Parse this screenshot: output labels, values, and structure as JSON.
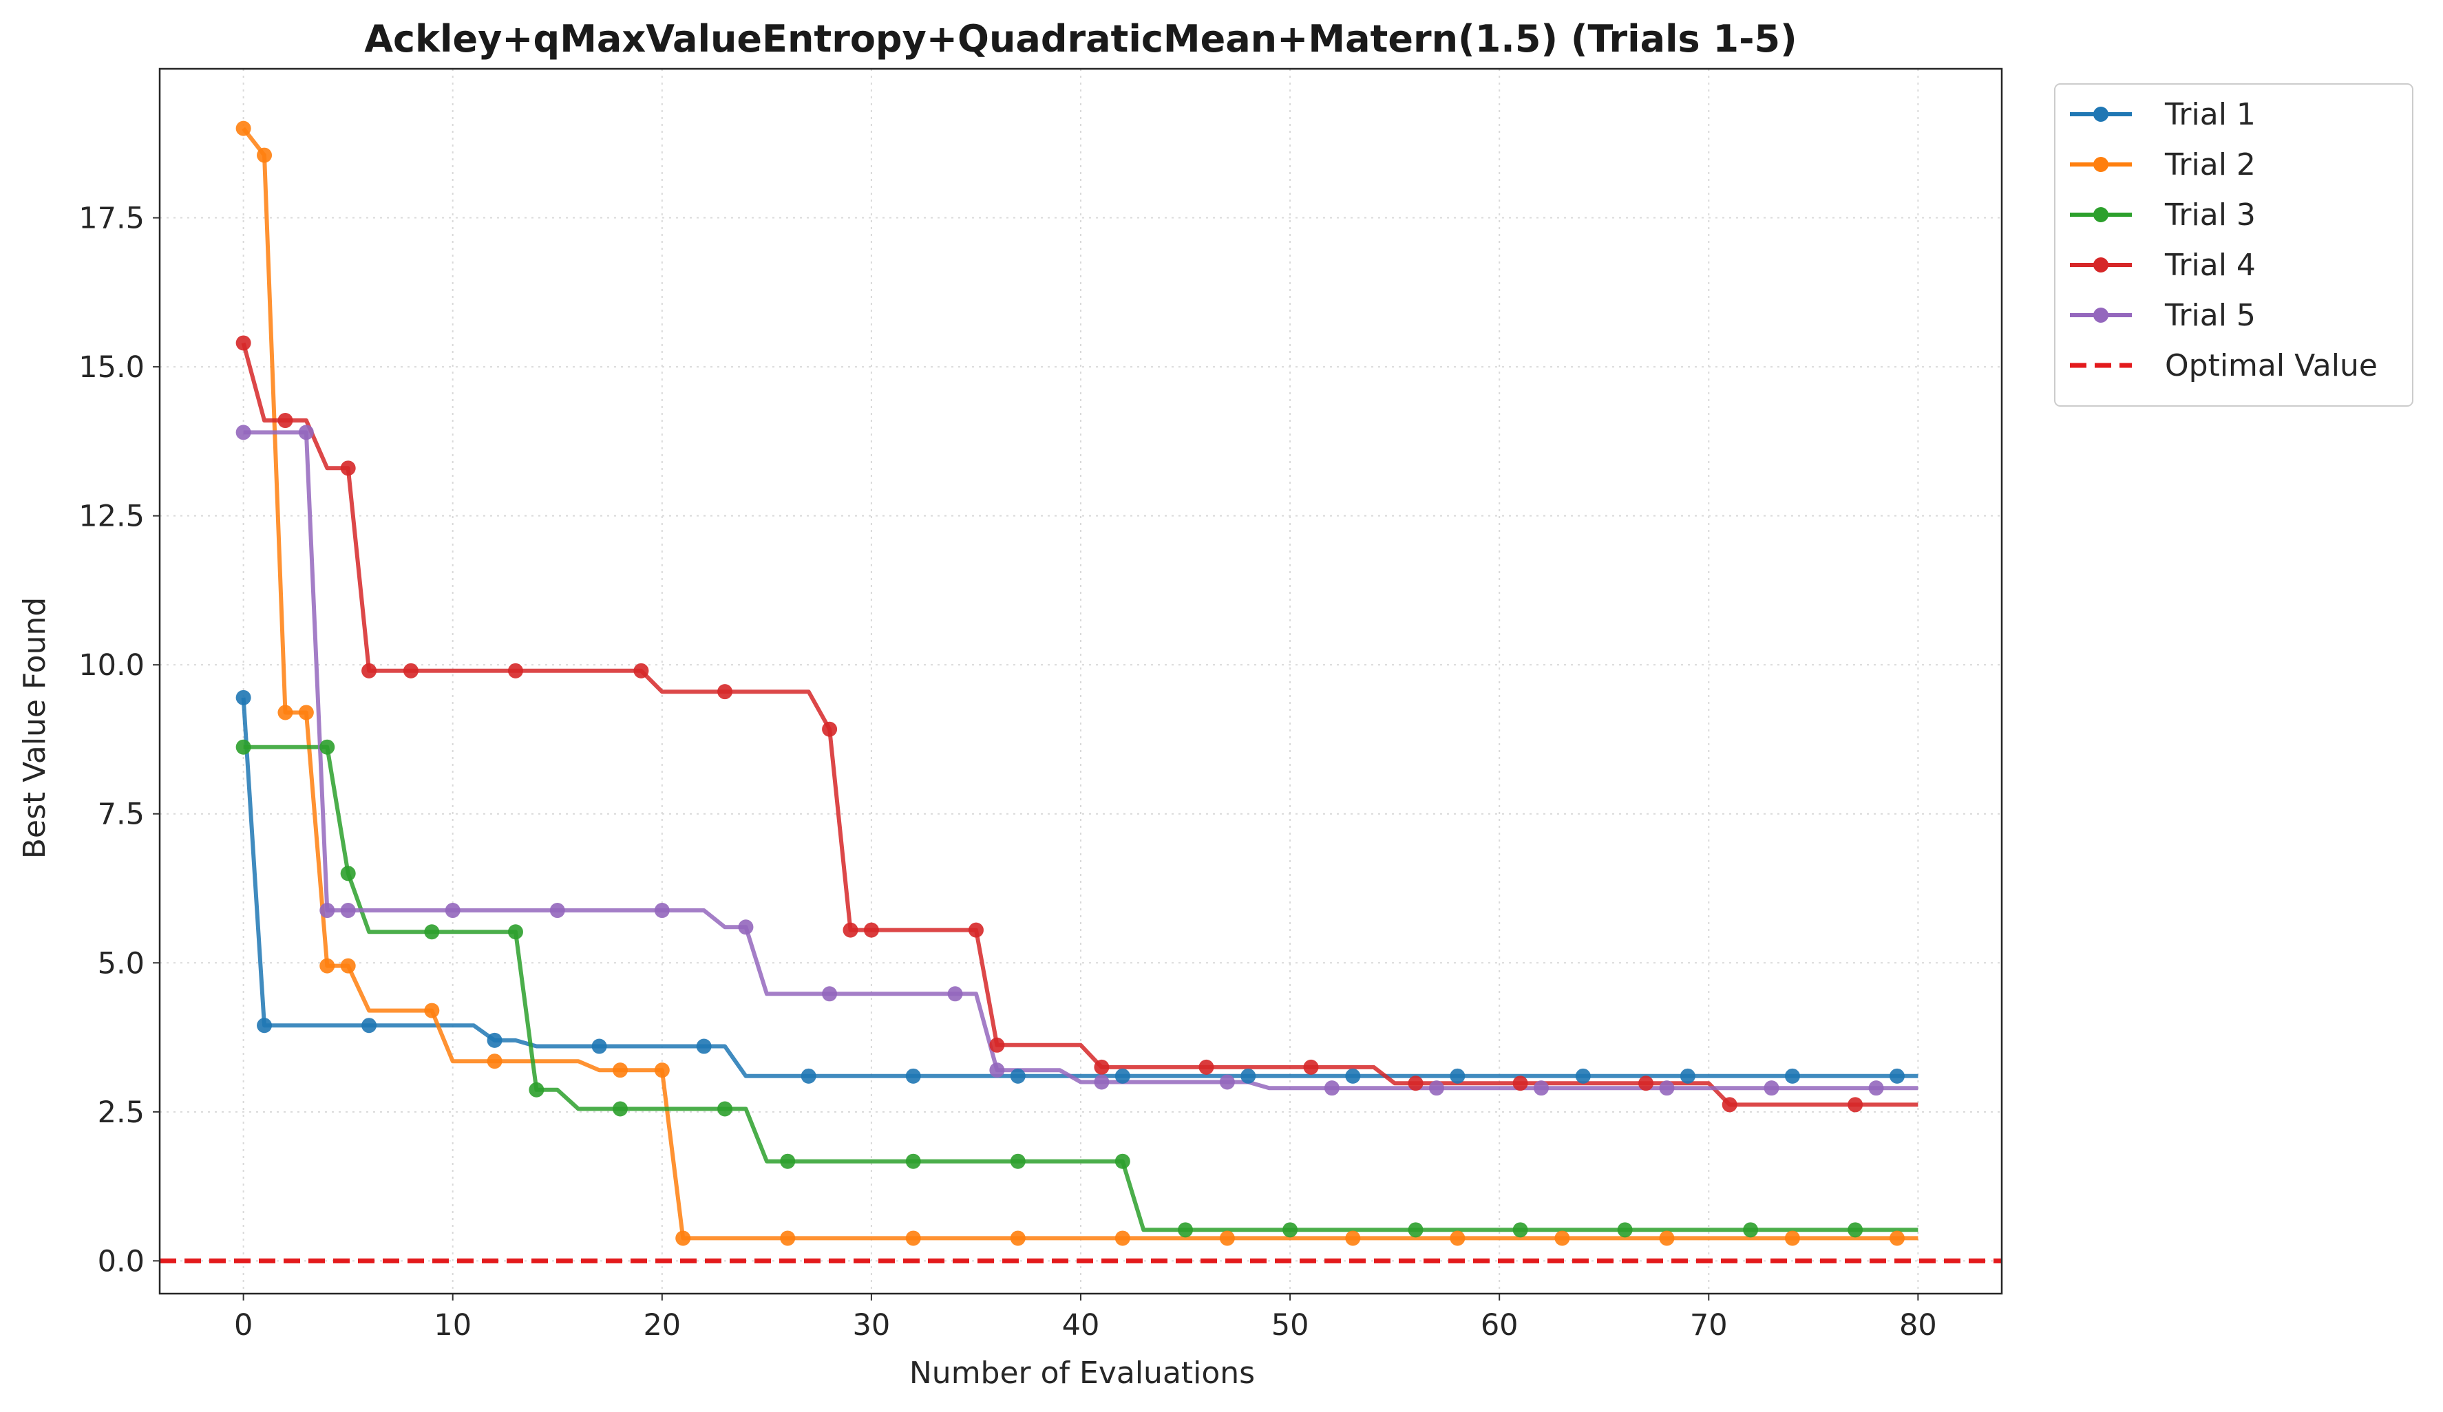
{
  "chart_data": {
    "type": "line",
    "title": "Ackley+qMaxValueEntropy+QuadraticMean+Matern(1.5) (Trials 1-5)",
    "xlabel": "Number of Evaluations",
    "ylabel": "Best Value Found",
    "xlim": [
      -4,
      84
    ],
    "ylim": [
      -0.55,
      20.0
    ],
    "xticks": [
      0,
      10,
      20,
      30,
      40,
      50,
      60,
      70,
      80
    ],
    "xtick_labels": [
      "0",
      "10",
      "20",
      "30",
      "40",
      "50",
      "60",
      "70",
      "80"
    ],
    "yticks": [
      0,
      2.5,
      5,
      7.5,
      10,
      12.5,
      15,
      17.5
    ],
    "ytick_labels": [
      "0.0",
      "2.5",
      "5.0",
      "7.5",
      "10.0",
      "12.5",
      "15.0",
      "17.5"
    ],
    "grid": true,
    "legend_position": "outside-top-right",
    "series": [
      {
        "name": "Trial 1",
        "color": "#1f77b4",
        "breaks": [
          [
            0,
            9.45
          ],
          [
            1,
            3.95
          ],
          [
            11,
            3.95
          ],
          [
            12,
            3.7
          ],
          [
            13,
            3.7
          ],
          [
            14,
            3.6
          ],
          [
            22,
            3.6
          ],
          [
            23,
            3.6
          ],
          [
            24,
            3.1
          ],
          [
            80,
            3.1
          ]
        ],
        "markers": [
          [
            0,
            9.45
          ],
          [
            1,
            3.95
          ],
          [
            6,
            3.95
          ],
          [
            12,
            3.7
          ],
          [
            17,
            3.6
          ],
          [
            22,
            3.6
          ],
          [
            27,
            3.1
          ],
          [
            32,
            3.1
          ],
          [
            37,
            3.1
          ],
          [
            42,
            3.1
          ],
          [
            48,
            3.1
          ],
          [
            53,
            3.1
          ],
          [
            58,
            3.1
          ],
          [
            64,
            3.1
          ],
          [
            69,
            3.1
          ],
          [
            74,
            3.1
          ],
          [
            79,
            3.1
          ]
        ]
      },
      {
        "name": "Trial 2",
        "color": "#ff7f0e",
        "breaks": [
          [
            0,
            19.0
          ],
          [
            1,
            18.55
          ],
          [
            2,
            9.2
          ],
          [
            3,
            9.2
          ],
          [
            4,
            4.95
          ],
          [
            5,
            4.95
          ],
          [
            6,
            4.2
          ],
          [
            9,
            4.2
          ],
          [
            10,
            3.35
          ],
          [
            16,
            3.35
          ],
          [
            17,
            3.2
          ],
          [
            20,
            3.2
          ],
          [
            21,
            0.38
          ],
          [
            80,
            0.38
          ]
        ],
        "markers": [
          [
            0,
            19.0
          ],
          [
            1,
            18.55
          ],
          [
            2,
            9.2
          ],
          [
            3,
            9.2
          ],
          [
            4,
            4.95
          ],
          [
            5,
            4.95
          ],
          [
            9,
            4.2
          ],
          [
            12,
            3.35
          ],
          [
            18,
            3.2
          ],
          [
            20,
            3.2
          ],
          [
            21,
            0.38
          ],
          [
            26,
            0.38
          ],
          [
            32,
            0.38
          ],
          [
            37,
            0.38
          ],
          [
            42,
            0.38
          ],
          [
            47,
            0.38
          ],
          [
            53,
            0.38
          ],
          [
            58,
            0.38
          ],
          [
            63,
            0.38
          ],
          [
            68,
            0.38
          ],
          [
            74,
            0.38
          ],
          [
            79,
            0.38
          ]
        ]
      },
      {
        "name": "Trial 3",
        "color": "#2ca02c",
        "breaks": [
          [
            0,
            8.62
          ],
          [
            4,
            8.62
          ],
          [
            5,
            6.5
          ],
          [
            6,
            5.52
          ],
          [
            13,
            5.52
          ],
          [
            14,
            2.87
          ],
          [
            15,
            2.87
          ],
          [
            16,
            2.55
          ],
          [
            24,
            2.55
          ],
          [
            25,
            1.67
          ],
          [
            42,
            1.67
          ],
          [
            43,
            0.52
          ],
          [
            80,
            0.52
          ]
        ],
        "markers": [
          [
            0,
            8.62
          ],
          [
            4,
            8.62
          ],
          [
            5,
            6.5
          ],
          [
            9,
            5.52
          ],
          [
            13,
            5.52
          ],
          [
            14,
            2.87
          ],
          [
            18,
            2.55
          ],
          [
            23,
            2.55
          ],
          [
            26,
            1.67
          ],
          [
            32,
            1.67
          ],
          [
            37,
            1.67
          ],
          [
            42,
            1.67
          ],
          [
            45,
            0.52
          ],
          [
            50,
            0.52
          ],
          [
            56,
            0.52
          ],
          [
            61,
            0.52
          ],
          [
            66,
            0.52
          ],
          [
            72,
            0.52
          ],
          [
            77,
            0.52
          ]
        ]
      },
      {
        "name": "Trial 4",
        "color": "#d62728",
        "breaks": [
          [
            0,
            15.4
          ],
          [
            1,
            14.1
          ],
          [
            3,
            14.1
          ],
          [
            4,
            13.3
          ],
          [
            5,
            13.3
          ],
          [
            6,
            9.9
          ],
          [
            19,
            9.9
          ],
          [
            20,
            9.55
          ],
          [
            27,
            9.55
          ],
          [
            28,
            8.92
          ],
          [
            29,
            5.55
          ],
          [
            35,
            5.55
          ],
          [
            36,
            3.62
          ],
          [
            40,
            3.62
          ],
          [
            41,
            3.25
          ],
          [
            54,
            3.25
          ],
          [
            55,
            2.98
          ],
          [
            70,
            2.98
          ],
          [
            71,
            2.62
          ],
          [
            80,
            2.62
          ]
        ],
        "markers": [
          [
            0,
            15.4
          ],
          [
            2,
            14.1
          ],
          [
            5,
            13.3
          ],
          [
            6,
            9.9
          ],
          [
            8,
            9.9
          ],
          [
            13,
            9.9
          ],
          [
            19,
            9.9
          ],
          [
            23,
            9.55
          ],
          [
            28,
            8.92
          ],
          [
            29,
            5.55
          ],
          [
            30,
            5.55
          ],
          [
            35,
            5.55
          ],
          [
            36,
            3.62
          ],
          [
            41,
            3.25
          ],
          [
            46,
            3.25
          ],
          [
            51,
            3.25
          ],
          [
            56,
            2.98
          ],
          [
            61,
            2.98
          ],
          [
            67,
            2.98
          ],
          [
            71,
            2.62
          ],
          [
            77,
            2.62
          ]
        ]
      },
      {
        "name": "Trial 5",
        "color": "#9467bd",
        "breaks": [
          [
            0,
            13.9
          ],
          [
            3,
            13.9
          ],
          [
            4,
            5.88
          ],
          [
            22,
            5.88
          ],
          [
            23,
            5.6
          ],
          [
            24,
            5.6
          ],
          [
            25,
            4.48
          ],
          [
            35,
            4.48
          ],
          [
            36,
            3.2
          ],
          [
            39,
            3.2
          ],
          [
            40,
            3.0
          ],
          [
            48,
            3.0
          ],
          [
            49,
            2.9
          ],
          [
            80,
            2.9
          ]
        ],
        "markers": [
          [
            0,
            13.9
          ],
          [
            3,
            13.9
          ],
          [
            4,
            5.88
          ],
          [
            5,
            5.88
          ],
          [
            10,
            5.88
          ],
          [
            15,
            5.88
          ],
          [
            20,
            5.88
          ],
          [
            24,
            5.6
          ],
          [
            28,
            4.48
          ],
          [
            34,
            4.48
          ],
          [
            36,
            3.2
          ],
          [
            41,
            3.0
          ],
          [
            47,
            3.0
          ],
          [
            52,
            2.9
          ],
          [
            57,
            2.9
          ],
          [
            62,
            2.9
          ],
          [
            68,
            2.9
          ],
          [
            73,
            2.9
          ],
          [
            78,
            2.9
          ]
        ]
      },
      {
        "name": "Optimal Value",
        "color": "#e31a1c",
        "type": "hline",
        "y": 0.0,
        "dashed": true
      }
    ]
  }
}
